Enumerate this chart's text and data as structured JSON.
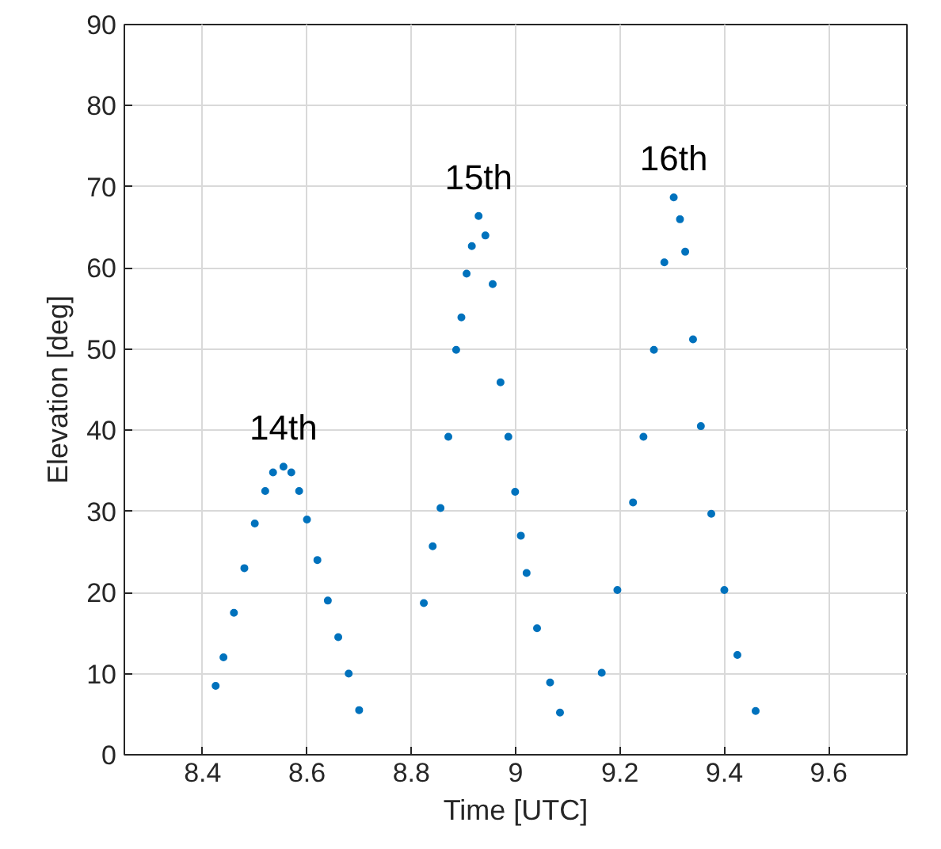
{
  "chart_data": {
    "type": "scatter",
    "xlabel": "Time [UTC]",
    "ylabel": "Elevation [deg]",
    "xlim": [
      8.25,
      9.75
    ],
    "xticks": [
      8.4,
      8.6,
      8.8,
      9,
      9.2,
      9.4,
      9.6
    ],
    "ylim": [
      0,
      90
    ],
    "yticks": [
      0,
      10,
      20,
      30,
      40,
      50,
      60,
      70,
      80,
      90
    ],
    "grid": true,
    "marker": "circle",
    "series": [
      {
        "color": "#0072bd",
        "x": [
          8.425,
          8.44,
          8.46,
          8.48,
          8.5,
          8.52,
          8.535,
          8.555,
          8.57,
          8.585,
          8.6,
          8.62,
          8.64,
          8.66,
          8.68,
          8.7,
          8.824,
          8.841,
          8.856,
          8.871,
          8.886,
          8.896,
          8.906,
          8.916,
          8.929,
          8.942,
          8.956,
          8.971,
          8.986,
          8.999,
          9.01,
          9.021,
          9.041,
          9.066,
          9.085,
          9.165,
          9.195,
          9.225,
          9.245,
          9.265,
          9.285,
          9.303,
          9.315,
          9.325,
          9.34,
          9.355,
          9.375,
          9.4,
          9.425,
          9.46
        ],
        "values": [
          8.5,
          12,
          17.5,
          23,
          28.5,
          32.5,
          34.8,
          35.5,
          34.8,
          32.5,
          29,
          24,
          19,
          14.5,
          10,
          5.5,
          18.7,
          25.7,
          30.4,
          39.2,
          49.9,
          53.9,
          59.3,
          62.7,
          66.4,
          64,
          58,
          45.9,
          39.2,
          32.4,
          27,
          22.4,
          15.6,
          8.9,
          5.2,
          10.1,
          20.3,
          31.1,
          39.2,
          49.9,
          60.7,
          68.7,
          66,
          62,
          51.2,
          40.5,
          29.7,
          20.3,
          12.3,
          5.4
        ]
      }
    ],
    "annotations": [
      "14th",
      "15th",
      "16th"
    ]
  }
}
